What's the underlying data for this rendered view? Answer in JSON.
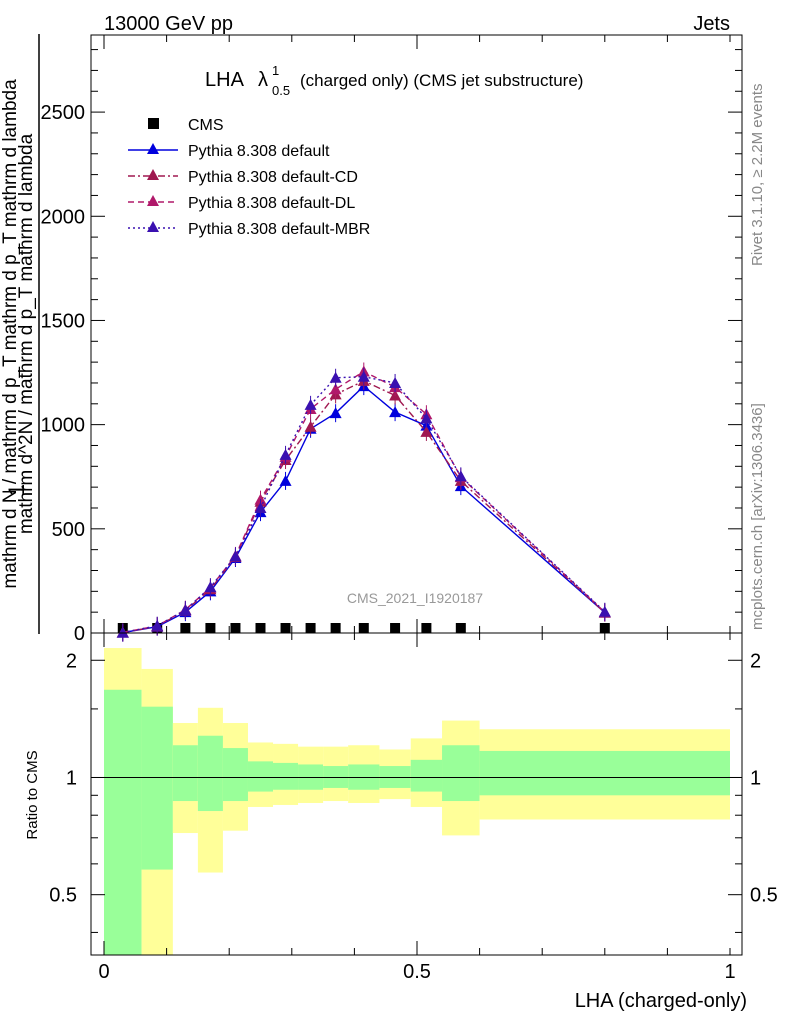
{
  "header": {
    "left": "13000 GeV pp",
    "right": "Jets"
  },
  "side_text": {
    "rivet": "Rivet 3.1.10, ≥ 2.2M events",
    "mcplots": "mcplots.cern.ch [arXiv:1306.3436]"
  },
  "chart_data": [
    {
      "type": "line",
      "title": "LHA",
      "title_symbol": "λ",
      "title_sup": "1",
      "title_sub": "0.5",
      "title_rest": "(charged only) (CMS jet substructure)",
      "watermark": "CMS_2021_I1920187",
      "ylabel_num": "1",
      "ylabel_den": "mathrm d N / mathrm d p_T mathrm d p_T mathrm d lambda",
      "ylabel_numerator_text": "mathrm d^2N",
      "ylabel_top": "mathrm d^2N / mathrm d p_T mathrm d lambda",
      "xlim": [
        -0.03,
        1.0
      ],
      "ylim": [
        0,
        2870
      ],
      "yticks": [
        0,
        500,
        1000,
        1500,
        2000,
        2500
      ],
      "ytick_labels": [
        "0",
        "500",
        "1000",
        "1500",
        "2000",
        "2500"
      ],
      "legend_placement": "top-left",
      "x": [
        0.03,
        0.085,
        0.13,
        0.17,
        0.21,
        0.25,
        0.29,
        0.33,
        0.37,
        0.415,
        0.465,
        0.515,
        0.57,
        0.8
      ],
      "series": [
        {
          "name": "CMS",
          "color": "#000000",
          "marker": "square",
          "line": "none",
          "values": [
            0,
            0,
            0,
            0,
            0,
            0,
            0,
            0,
            0,
            0,
            0,
            0,
            0,
            0
          ]
        },
        {
          "name": "Pythia 8.308 default",
          "color": "#0000dd",
          "marker": "triangle",
          "line": "solid",
          "values": [
            2,
            30,
            100,
            200,
            360,
            580,
            730,
            980,
            1055,
            1185,
            1060,
            995,
            705,
            98
          ]
        },
        {
          "name": "Pythia 8.308 default-CD",
          "color": "#a01850",
          "marker": "triangle",
          "line": "dashdot",
          "values": [
            2,
            32,
            108,
            210,
            365,
            630,
            830,
            990,
            1145,
            1210,
            1140,
            965,
            730,
            98
          ]
        },
        {
          "name": "Pythia 8.308 default-DL",
          "color": "#b0186a",
          "marker": "triangle",
          "line": "dashed",
          "values": [
            3,
            34,
            112,
            218,
            370,
            640,
            845,
            1075,
            1170,
            1255,
            1180,
            1050,
            748,
            100
          ]
        },
        {
          "name": "Pythia 8.308 default-MBR",
          "color": "#3a10b0",
          "marker": "triangle",
          "line": "dotted",
          "values": [
            2,
            35,
            110,
            220,
            368,
            600,
            855,
            1095,
            1225,
            1230,
            1200,
            1030,
            752,
            102
          ]
        }
      ]
    },
    {
      "type": "area",
      "ylabel": "Ratio to CMS",
      "xlabel": "LHA (charged-only)",
      "ylim": [
        0.35,
        2.35
      ],
      "log_y": true,
      "yticks": [
        0.5,
        1,
        2
      ],
      "ytick_labels": [
        "0.5",
        "1",
        "2"
      ],
      "xticks": [
        0,
        0.5,
        1
      ],
      "xtick_labels": [
        "0",
        "0.5",
        "1"
      ],
      "reference": 1,
      "band_colors": {
        "outer": "#ffff99",
        "inner": "#99ff99"
      },
      "bins": [
        {
          "x0": 0.0,
          "x1": 0.06,
          "outer": [
            0.3,
            2.15
          ],
          "inner": [
            0.3,
            1.68
          ]
        },
        {
          "x0": 0.06,
          "x1": 0.11,
          "outer": [
            0.3,
            1.9
          ],
          "inner": [
            0.58,
            1.52
          ]
        },
        {
          "x0": 0.11,
          "x1": 0.15,
          "outer": [
            0.72,
            1.38
          ],
          "inner": [
            0.87,
            1.21
          ]
        },
        {
          "x0": 0.15,
          "x1": 0.19,
          "outer": [
            0.57,
            1.51
          ],
          "inner": [
            0.82,
            1.28
          ]
        },
        {
          "x0": 0.19,
          "x1": 0.23,
          "outer": [
            0.73,
            1.38
          ],
          "inner": [
            0.87,
            1.19
          ]
        },
        {
          "x0": 0.23,
          "x1": 0.27,
          "outer": [
            0.84,
            1.23
          ],
          "inner": [
            0.92,
            1.1
          ]
        },
        {
          "x0": 0.27,
          "x1": 0.31,
          "outer": [
            0.85,
            1.22
          ],
          "inner": [
            0.93,
            1.09
          ]
        },
        {
          "x0": 0.31,
          "x1": 0.35,
          "outer": [
            0.86,
            1.2
          ],
          "inner": [
            0.93,
            1.08
          ]
        },
        {
          "x0": 0.35,
          "x1": 0.39,
          "outer": [
            0.87,
            1.2
          ],
          "inner": [
            0.94,
            1.07
          ]
        },
        {
          "x0": 0.39,
          "x1": 0.44,
          "outer": [
            0.86,
            1.21
          ],
          "inner": [
            0.93,
            1.08
          ]
        },
        {
          "x0": 0.44,
          "x1": 0.49,
          "outer": [
            0.88,
            1.18
          ],
          "inner": [
            0.94,
            1.07
          ]
        },
        {
          "x0": 0.49,
          "x1": 0.54,
          "outer": [
            0.84,
            1.26
          ],
          "inner": [
            0.92,
            1.11
          ]
        },
        {
          "x0": 0.54,
          "x1": 0.6,
          "outer": [
            0.71,
            1.4
          ],
          "inner": [
            0.87,
            1.21
          ]
        },
        {
          "x0": 0.6,
          "x1": 1.0,
          "outer": [
            0.78,
            1.33
          ],
          "inner": [
            0.9,
            1.17
          ]
        }
      ]
    }
  ]
}
